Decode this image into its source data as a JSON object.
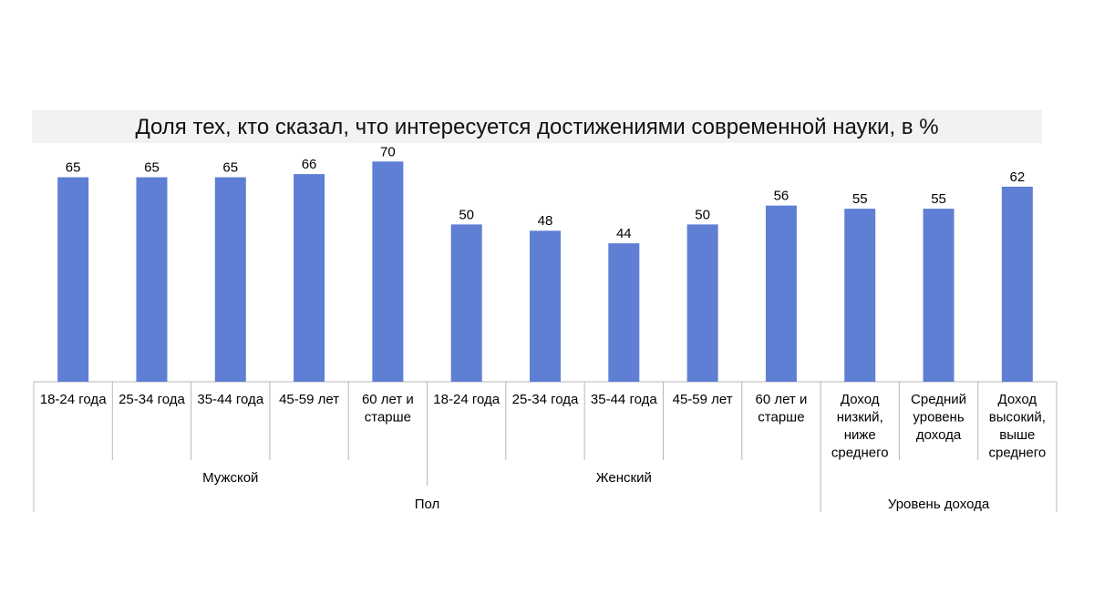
{
  "chart_data": {
    "type": "bar",
    "title": "Доля тех, кто сказал, что интересуется достижениями современной науки, в %",
    "bar_color": "#5f7fd4",
    "categories": [
      [
        "18-24 года"
      ],
      [
        "25-34 года"
      ],
      [
        "35-44 года"
      ],
      [
        "45-59 лет"
      ],
      [
        "60 лет и",
        "старше"
      ],
      [
        "18-24 года"
      ],
      [
        "25-34 года"
      ],
      [
        "35-44 года"
      ],
      [
        "45-59 лет"
      ],
      [
        "60 лет и",
        "старше"
      ],
      [
        "Доход",
        "низкий,",
        "ниже",
        "среднего"
      ],
      [
        "Средний",
        "уровень",
        "дохода"
      ],
      [
        "Доход",
        "высокий,",
        "выше",
        "среднего"
      ]
    ],
    "values": [
      65,
      65,
      65,
      66,
      70,
      50,
      48,
      44,
      50,
      56,
      55,
      55,
      62
    ],
    "group_level_1": [
      {
        "label": "Мужской",
        "start": 0,
        "end": 4
      },
      {
        "label": "Женский",
        "start": 5,
        "end": 9
      }
    ],
    "group_level_2": [
      {
        "label": "Пол",
        "start": 0,
        "end": 9
      },
      {
        "label": "Уровень дохода",
        "start": 10,
        "end": 12
      }
    ],
    "ylim": [
      0,
      75
    ],
    "grid": false,
    "legend": "none"
  }
}
